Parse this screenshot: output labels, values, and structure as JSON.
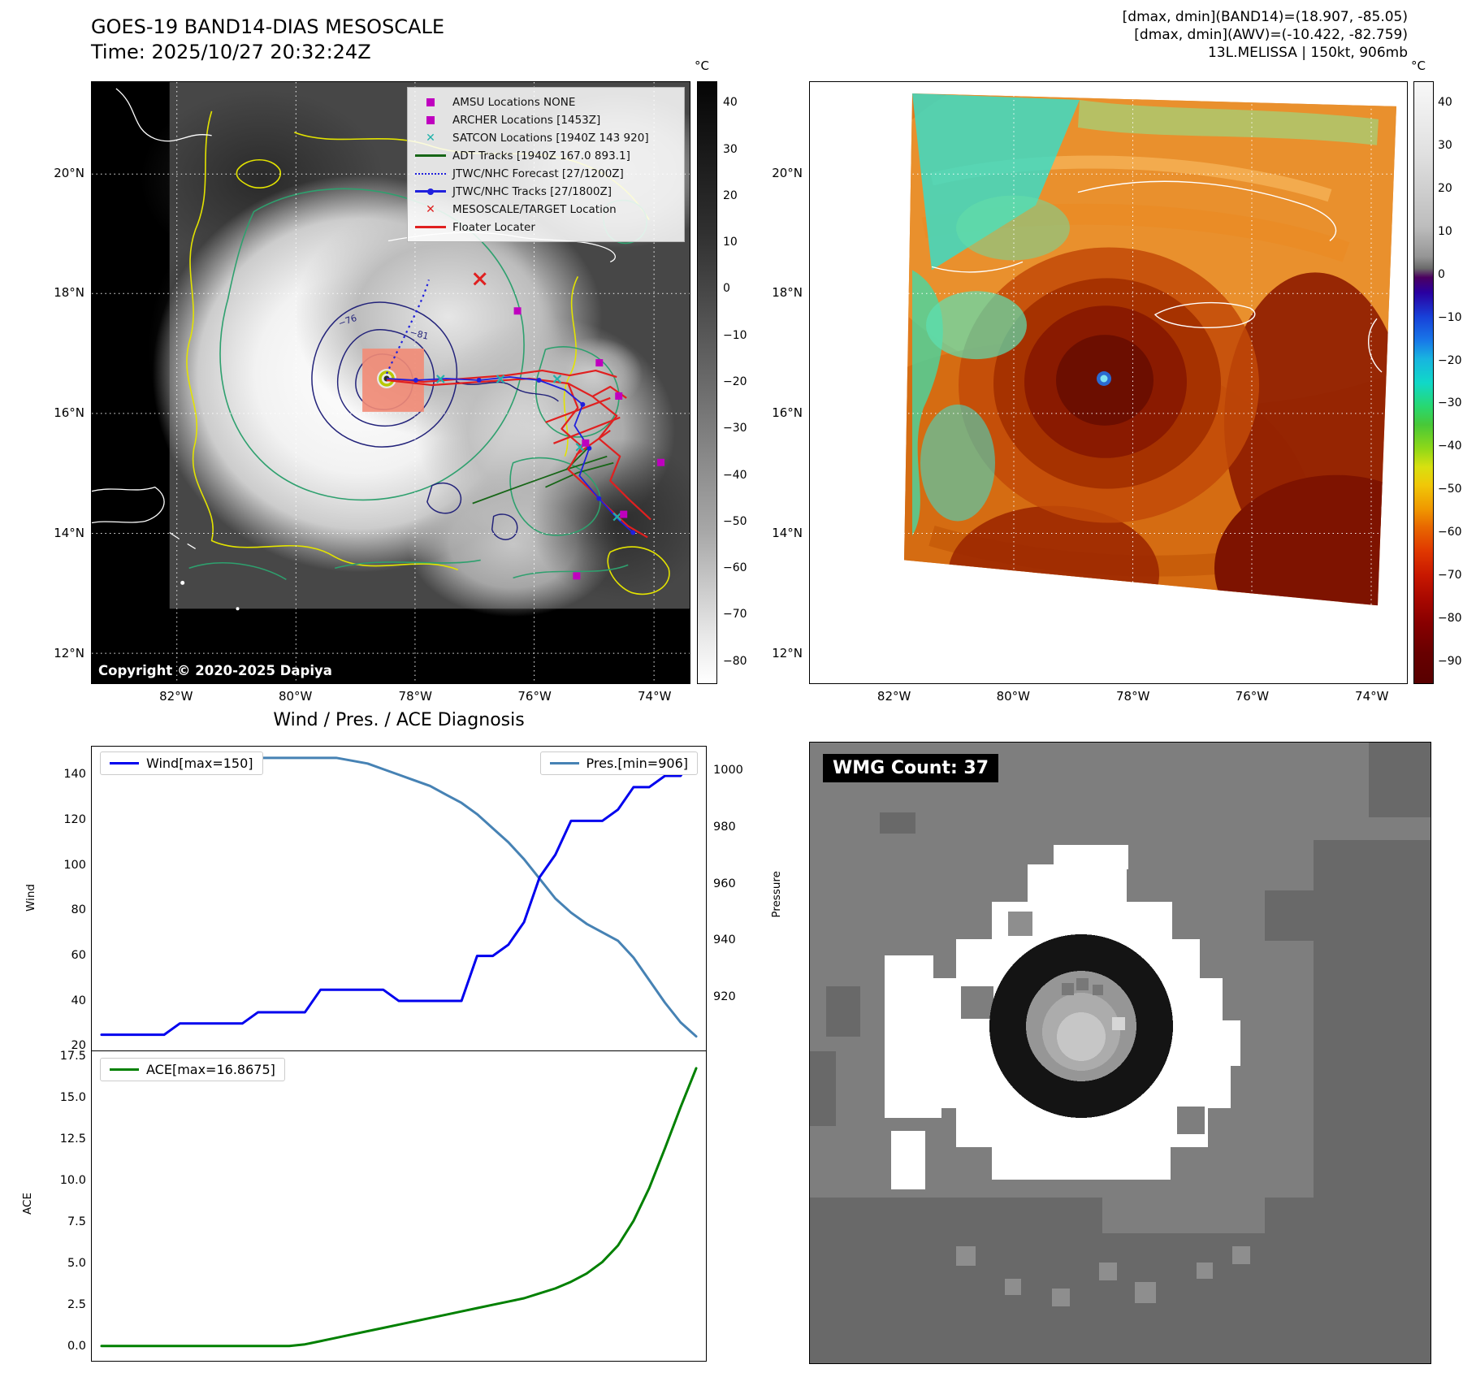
{
  "panels": {
    "band14": {
      "title_line1": "GOES-19 BAND14-DIAS MESOSCALE",
      "title_line2": "Time: 2025/10/27 20:32:24Z",
      "copyright": "Copyright © 2020-2025 Dapiya",
      "colorbar_unit": "°C",
      "colorbar_ticks": [
        "40",
        "30",
        "20",
        "10",
        "0",
        "−10",
        "−20",
        "−30",
        "−40",
        "−50",
        "−60",
        "−70",
        "−80"
      ],
      "lat_labels": [
        "20°N",
        "18°N",
        "16°N",
        "14°N",
        "12°N"
      ],
      "lon_labels": [
        "82°W",
        "80°W",
        "78°W",
        "76°W",
        "74°W"
      ],
      "contour_labels": {
        "outer": "−76",
        "inner": "−81"
      },
      "legend_items": [
        {
          "label": "AMSU Locations NONE",
          "marker": "square",
          "color": "#bf00bf"
        },
        {
          "label": "ARCHER Locations [1453Z]",
          "marker": "square",
          "color": "#bf00bf"
        },
        {
          "label": "SATCON Locations [1940Z 143 920]",
          "marker": "x",
          "color": "#20b2aa"
        },
        {
          "label": "ADT Tracks [1940Z 167.0 893.1]",
          "marker": "line",
          "color": "#176617"
        },
        {
          "label": "JTWC/NHC Forecast [27/1200Z]",
          "marker": "dotted",
          "color": "#2020dd"
        },
        {
          "label": "JTWC/NHC Tracks [27/1800Z]",
          "marker": "line-dot",
          "color": "#2020dd"
        },
        {
          "label": "MESOSCALE/TARGET Location",
          "marker": "x",
          "color": "#e02020"
        },
        {
          "label": "Floater Locater",
          "marker": "line",
          "color": "#e02020"
        }
      ]
    },
    "awv": {
      "header_line1": "[dmax, dmin](BAND14)=(18.907, -85.05)",
      "header_line2": "[dmax, dmin](AWV)=(-10.422, -82.759)",
      "header_line3": "13L.MELISSA | 150kt, 906mb",
      "colorbar_unit": "°C",
      "colorbar_ticks": [
        "40",
        "30",
        "20",
        "10",
        "0",
        "−10",
        "−20",
        "−30",
        "−40",
        "−50",
        "−60",
        "−70",
        "−80",
        "−90"
      ],
      "lat_labels": [
        "20°N",
        "18°N",
        "16°N",
        "14°N",
        "12°N"
      ],
      "lon_labels": [
        "82°W",
        "80°W",
        "78°W",
        "76°W",
        "74°W"
      ]
    },
    "diagnosis": {
      "title": "Wind / Pres. / ACE Diagnosis"
    },
    "wmg": {
      "count_label": "WMG Count: 37"
    }
  },
  "chart_data": [
    {
      "type": "line",
      "title": "Wind / Pres. / ACE Diagnosis (upper panel)",
      "x": "time-index",
      "left_axis": {
        "label": "Wind",
        "ticks": [
          "20",
          "40",
          "60",
          "80",
          "100",
          "120",
          "140"
        ],
        "range": [
          18,
          153
        ]
      },
      "right_axis": {
        "label": "Pressure",
        "ticks": [
          "920",
          "940",
          "960",
          "980",
          "1000"
        ],
        "range": [
          901,
          1009
        ]
      },
      "series": [
        {
          "name": "Wind[max=150]",
          "color": "#0000ee",
          "axis": "left",
          "values": [
            25,
            25,
            25,
            25,
            25,
            30,
            30,
            30,
            30,
            30,
            35,
            35,
            35,
            35,
            45,
            45,
            45,
            45,
            45,
            40,
            40,
            40,
            40,
            40,
            60,
            60,
            65,
            75,
            95,
            105,
            120,
            120,
            120,
            125,
            135,
            135,
            140,
            140,
            150
          ]
        },
        {
          "name": "Pres.[min=906]",
          "color": "#4682b4",
          "axis": "right",
          "values": [
            1005,
            1005,
            1005,
            1005,
            1005,
            1005,
            1005,
            1005,
            1005,
            1005,
            1005,
            1005,
            1005,
            1005,
            1005,
            1005,
            1004,
            1003,
            1001,
            999,
            997,
            995,
            992,
            989,
            985,
            980,
            975,
            969,
            962,
            955,
            950,
            946,
            943,
            940,
            934,
            926,
            918,
            911,
            906
          ]
        }
      ]
    },
    {
      "type": "line",
      "title": "ACE (lower panel)",
      "x": "time-index",
      "left_axis": {
        "label": "ACE",
        "ticks": [
          "0.0",
          "2.5",
          "5.0",
          "7.5",
          "10.0",
          "12.5",
          "15.0",
          "17.5"
        ],
        "range": [
          -0.9,
          17.9
        ]
      },
      "series": [
        {
          "name": "ACE[max=16.8675]",
          "color": "#008000",
          "axis": "left",
          "values": [
            0,
            0,
            0,
            0,
            0,
            0,
            0,
            0,
            0,
            0,
            0,
            0,
            0,
            0.1,
            0.3,
            0.5,
            0.7,
            0.9,
            1.1,
            1.3,
            1.5,
            1.7,
            1.9,
            2.1,
            2.3,
            2.5,
            2.7,
            2.9,
            3.2,
            3.5,
            3.9,
            4.4,
            5.1,
            6.1,
            7.6,
            9.6,
            12.0,
            14.5,
            16.8675
          ]
        }
      ]
    }
  ]
}
